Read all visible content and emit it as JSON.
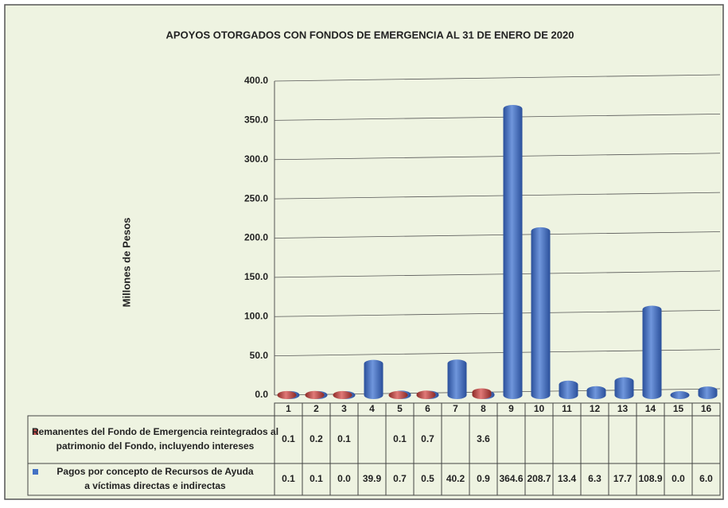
{
  "chart_data": {
    "type": "bar",
    "title": "APOYOS OTORGADOS CON FONDOS DE EMERGENCIA AL 31 DE ENERO DE 2020",
    "y_label": "Millones de Pesos",
    "categories": [
      "1",
      "2",
      "3",
      "4",
      "5",
      "6",
      "7",
      "8",
      "9",
      "10",
      "11",
      "12",
      "13",
      "14",
      "15",
      "16"
    ],
    "series": [
      {
        "name": "Remanentes del Fondo de Emergencia reintegrados al patrimonio del Fondo, incluyendo intereses",
        "color": "#c0504d",
        "values": [
          0.1,
          0.2,
          0.1,
          null,
          0.1,
          0.7,
          null,
          3.6,
          null,
          null,
          null,
          null,
          null,
          null,
          null,
          null
        ],
        "value_labels": [
          "0.1",
          "0.2",
          "0.1",
          null,
          "0.1",
          "0.7",
          null,
          "3.6",
          null,
          null,
          null,
          null,
          null,
          null,
          null,
          null
        ]
      },
      {
        "name": "Pagos por concepto de Recursos de Ayuda a víctimas directas e indirectas",
        "color": "#4472c4",
        "values": [
          0.1,
          0.1,
          0.0,
          39.9,
          0.7,
          0.5,
          40.2,
          0.9,
          364.6,
          208.7,
          13.4,
          6.3,
          17.7,
          108.9,
          0.0,
          6.0
        ],
        "value_labels": [
          "0.1",
          "0.1",
          "0.0",
          "39.9",
          "0.7",
          "0.5",
          "40.2",
          "0.9",
          "364.6",
          "208.7",
          "13.4",
          "6.3",
          "17.7",
          "108.9",
          "0.0",
          "6.0"
        ]
      }
    ],
    "ylim": [
      0,
      400
    ],
    "yticks": [
      {
        "value": 0,
        "label": "0.0"
      },
      {
        "value": 50,
        "label": "50.0"
      },
      {
        "value": 100,
        "label": "100.0"
      },
      {
        "value": 150,
        "label": "150.0"
      },
      {
        "value": 200,
        "label": "200.0"
      },
      {
        "value": 250,
        "label": "250.0"
      },
      {
        "value": 300,
        "label": "300.0"
      },
      {
        "value": 350,
        "label": "350.0"
      },
      {
        "value": 400,
        "label": "400.0"
      }
    ],
    "grid": true
  }
}
